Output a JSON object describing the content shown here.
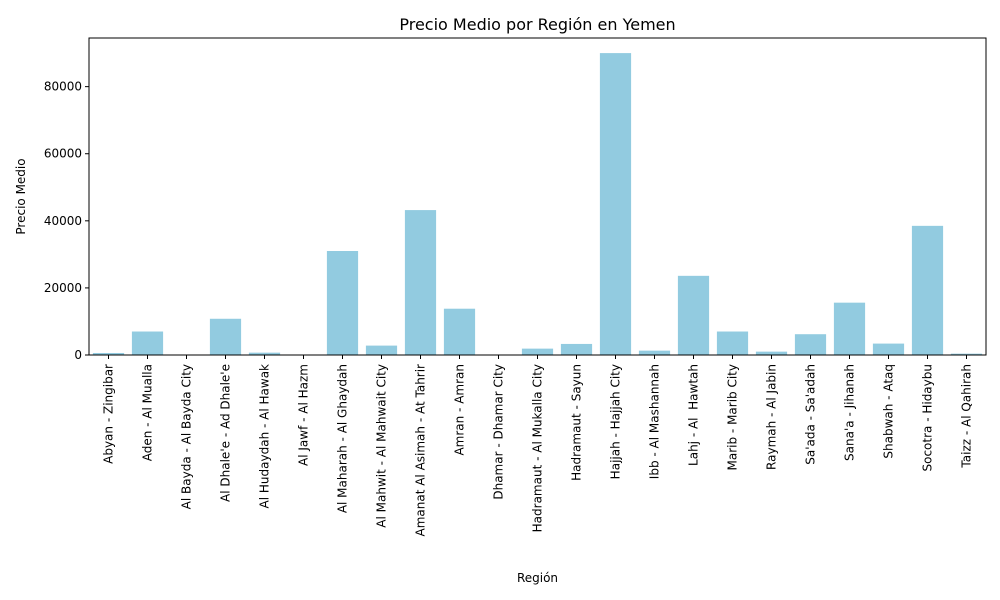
{
  "chart_data": {
    "type": "bar",
    "title": "Precio Medio por Región en Yemen",
    "xlabel": "Región",
    "ylabel": "Precio Medio",
    "ylim": [
      0,
      94500
    ],
    "yticks": [
      0,
      20000,
      40000,
      60000,
      80000
    ],
    "grid": false,
    "bar_color": "#92cbe0",
    "categories": [
      "Abyan - Zingibar",
      "Aden - Al Mualla",
      "Al Bayda - Al Bayda City",
      "Al Dhale'e - Ad Dhale'e",
      "Al Hudaydah - Al Hawak",
      "Al Jawf - Al Hazm",
      "Al Maharah - Al Ghaydah",
      "Al Mahwit - Al Mahwait City",
      "Amanat Al Asimah - At Tahrir",
      "Amran - Amran",
      "Dhamar - Dhamar City",
      "Hadramaut - Al Mukalla City",
      "Hadramaut - Sayun",
      "Hajjah - Hajjah City",
      "Ibb - Al Mashannah",
      "Lahj - Al  Hawtah",
      "Marib - Marib City",
      "Raymah - Al Jabin",
      "Sa'ada - Sa'adah",
      "Sana'a - Jihanah",
      "Shabwah - Ataq",
      "Socotra - Hidaybu",
      "Taizz - Al Qahirah"
    ],
    "values": [
      600,
      7000,
      100,
      10800,
      700,
      100,
      31000,
      2800,
      43200,
      13800,
      100,
      1900,
      3300,
      90000,
      1300,
      23600,
      7000,
      1000,
      6200,
      15600,
      3400,
      38500,
      400
    ]
  }
}
